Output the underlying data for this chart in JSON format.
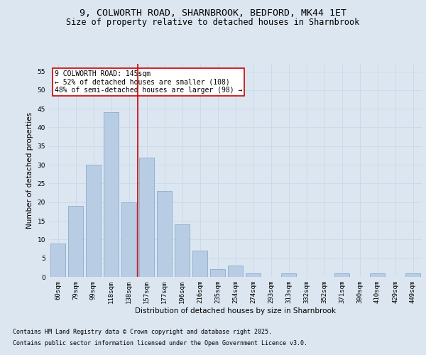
{
  "title_line1": "9, COLWORTH ROAD, SHARNBROOK, BEDFORD, MK44 1ET",
  "title_line2": "Size of property relative to detached houses in Sharnbrook",
  "xlabel": "Distribution of detached houses by size in Sharnbrook",
  "ylabel": "Number of detached properties",
  "categories": [
    "60sqm",
    "79sqm",
    "99sqm",
    "118sqm",
    "138sqm",
    "157sqm",
    "177sqm",
    "196sqm",
    "216sqm",
    "235sqm",
    "254sqm",
    "274sqm",
    "293sqm",
    "313sqm",
    "332sqm",
    "352sqm",
    "371sqm",
    "390sqm",
    "410sqm",
    "429sqm",
    "449sqm"
  ],
  "values": [
    9,
    19,
    30,
    44,
    20,
    32,
    23,
    14,
    7,
    2,
    3,
    1,
    0,
    1,
    0,
    0,
    1,
    0,
    1,
    0,
    1
  ],
  "bar_color": "#b8cce4",
  "bar_edge_color": "#7ba7c9",
  "vline_x_index": 4,
  "vline_color": "#cc0000",
  "annotation_text": "9 COLWORTH ROAD: 145sqm\n← 52% of detached houses are smaller (108)\n48% of semi-detached houses are larger (98) →",
  "annotation_box_color": "#ffffff",
  "annotation_box_edge_color": "#cc0000",
  "ylim": [
    0,
    57
  ],
  "yticks": [
    0,
    5,
    10,
    15,
    20,
    25,
    30,
    35,
    40,
    45,
    50,
    55
  ],
  "grid_color": "#c8d8ec",
  "background_color": "#dce6f1",
  "plot_bg_color": "#dce6f1",
  "footer_line1": "Contains HM Land Registry data © Crown copyright and database right 2025.",
  "footer_line2": "Contains public sector information licensed under the Open Government Licence v3.0.",
  "title_fontsize": 9.5,
  "subtitle_fontsize": 8.5,
  "axis_label_fontsize": 7.5,
  "tick_fontsize": 6.5,
  "annotation_fontsize": 7,
  "footer_fontsize": 6
}
